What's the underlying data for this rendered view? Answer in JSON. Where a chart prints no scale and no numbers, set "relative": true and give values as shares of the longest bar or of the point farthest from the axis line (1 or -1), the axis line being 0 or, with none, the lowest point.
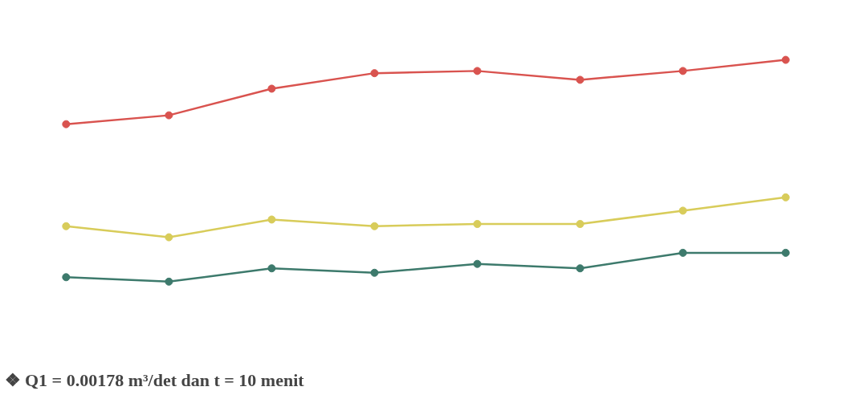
{
  "chart_data": {
    "type": "line",
    "relative": true,
    "marker": "circle",
    "line_style": "solid",
    "grid": false,
    "categories": [
      null,
      null,
      null,
      null,
      null,
      null,
      null,
      null
    ],
    "annotations": [
      "❖  Q1 = 0.00178 m³/det dan t = 10 menit"
    ],
    "series": [
      {
        "color": "#d9534f",
        "values": [
          0.71,
          0.75,
          0.87,
          0.94,
          0.95,
          0.91,
          0.95,
          1.0
        ]
      },
      {
        "color": "#d8cc5a",
        "values": [
          0.25,
          0.2,
          0.28,
          0.25,
          0.26,
          0.26,
          0.32,
          0.38
        ]
      },
      {
        "color": "#3d7a6c",
        "values": [
          0.02,
          0.0,
          0.06,
          0.04,
          0.08,
          0.06,
          0.13,
          0.13
        ]
      }
    ]
  }
}
